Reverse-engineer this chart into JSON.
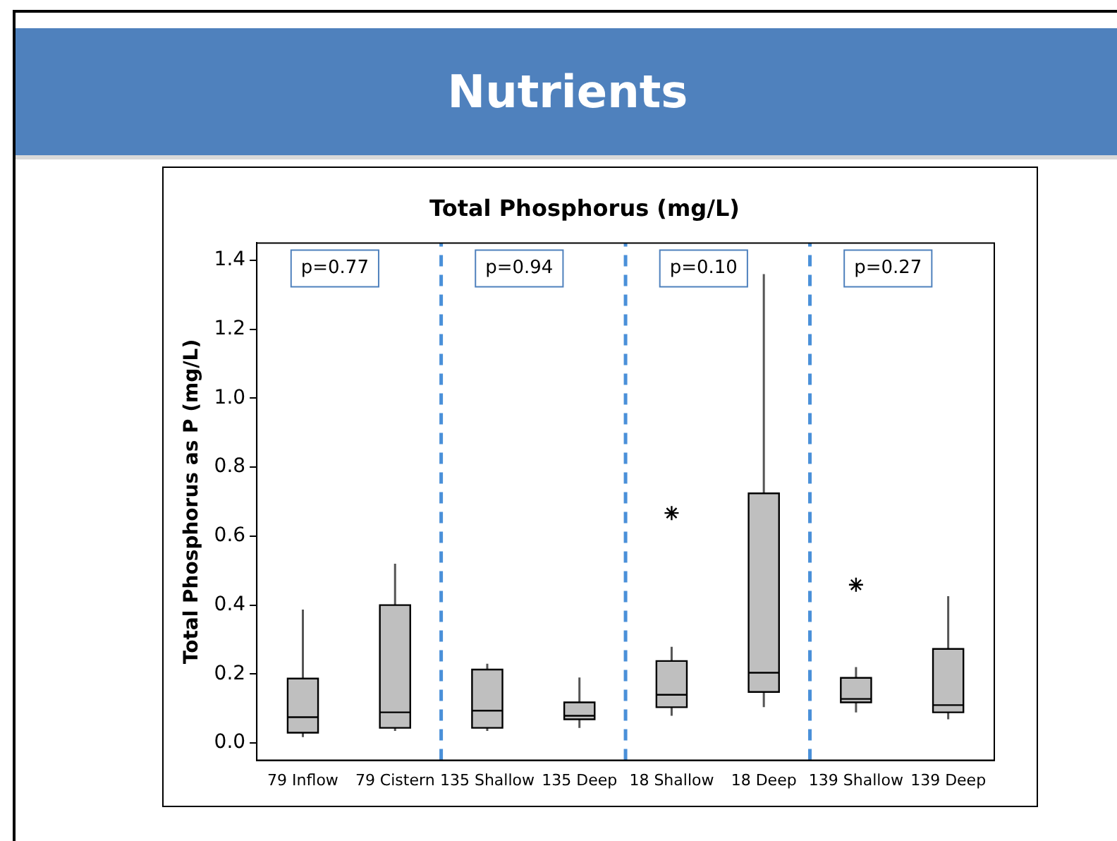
{
  "chart_data": {
    "type": "box",
    "title": "Nutrients",
    "subtitle": "Total Phosphorus (mg/L)",
    "ylabel": "Total Phosphorus as P (mg/L)",
    "categories": [
      "79 Inflow",
      "79 Cistern",
      "135 Shallow",
      "135 Deep",
      "18 Shallow",
      "18 Deep",
      "139 Shallow",
      "139 Deep"
    ],
    "color": "#bfbfbf",
    "boxes": [
      {
        "low": 0.017,
        "q1": 0.03,
        "median": 0.075,
        "q3": 0.187,
        "high": 0.387
      },
      {
        "low": 0.035,
        "q1": 0.044,
        "median": 0.089,
        "q3": 0.4,
        "high": 0.52
      },
      {
        "low": 0.035,
        "q1": 0.044,
        "median": 0.094,
        "q3": 0.213,
        "high": 0.23
      },
      {
        "low": 0.044,
        "q1": 0.069,
        "median": 0.079,
        "q3": 0.118,
        "high": 0.19
      },
      {
        "low": 0.079,
        "q1": 0.104,
        "median": 0.14,
        "q3": 0.238,
        "high": 0.279,
        "outliers": [
          0.667
        ]
      },
      {
        "low": 0.104,
        "q1": 0.148,
        "median": 0.204,
        "q3": 0.724,
        "high": 1.36
      },
      {
        "low": 0.089,
        "q1": 0.118,
        "median": 0.128,
        "q3": 0.189,
        "high": 0.22,
        "outliers": [
          0.459
        ]
      },
      {
        "low": 0.069,
        "q1": 0.089,
        "median": 0.11,
        "q3": 0.273,
        "high": 0.426
      }
    ],
    "ylim": [
      -0.05,
      1.45
    ],
    "yticks": [
      {
        "value": 0,
        "label": "0.0"
      },
      {
        "value": 0.2,
        "label": "0.2"
      },
      {
        "value": 0.4,
        "label": "0.4"
      },
      {
        "value": 0.6,
        "label": "0.6"
      },
      {
        "value": 0.8,
        "label": "0.8"
      },
      {
        "value": 1,
        "label": "1.0"
      },
      {
        "value": 1.2,
        "label": "1.2"
      },
      {
        "value": 1.4,
        "label": "1.4"
      }
    ],
    "annotations": [
      "p=0.77",
      "p=0.94",
      "p=0.10",
      "p=0.27"
    ],
    "marker": "star",
    "grid": false,
    "legend": false
  }
}
